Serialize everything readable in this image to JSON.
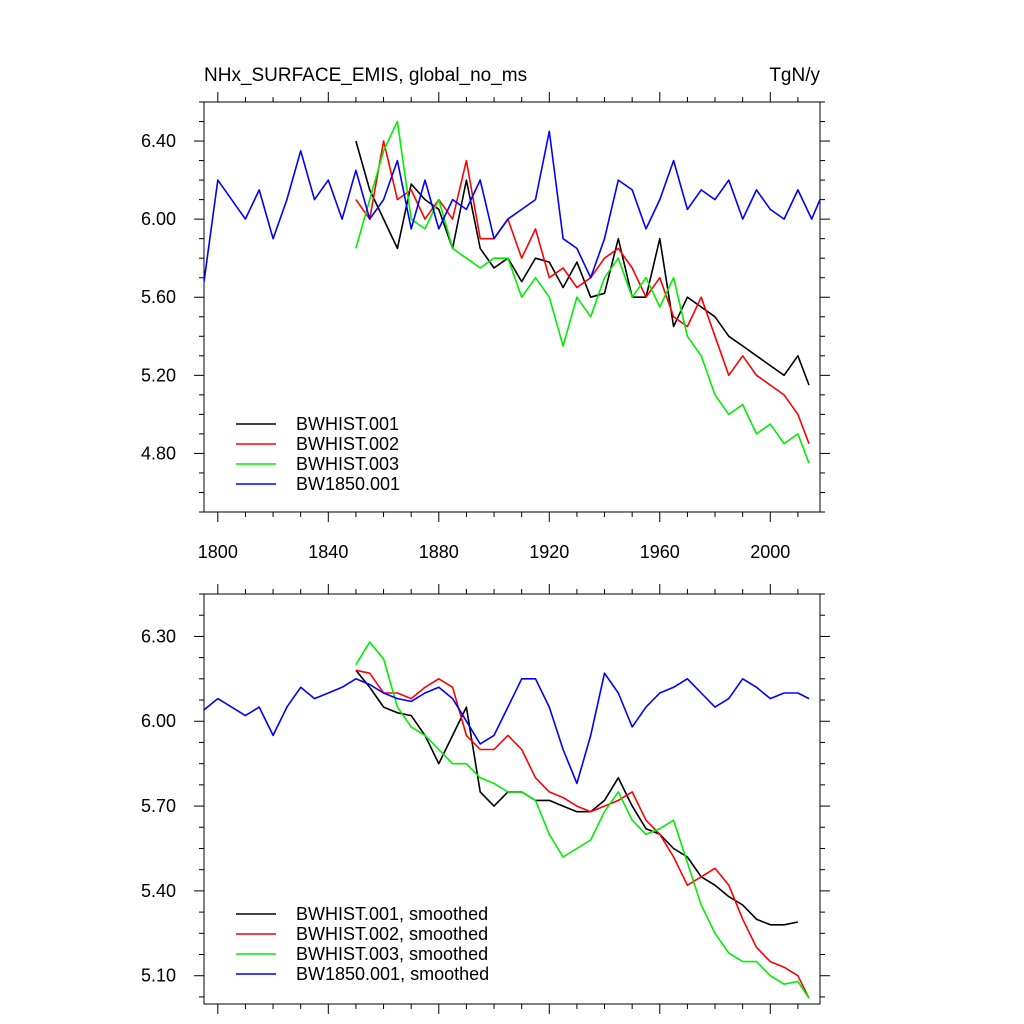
{
  "chart_data": [
    {
      "type": "line",
      "title": "NHx_SURFACE_EMIS, global_no_ms",
      "units": "TgN/y",
      "xlim": [
        1795,
        2018
      ],
      "ylim": [
        4.5,
        6.6
      ],
      "xticks": [
        1800,
        1840,
        1880,
        1920,
        1960,
        2000
      ],
      "xtick_labels": [
        "1800",
        "1840",
        "1880",
        "1920",
        "1960",
        "2000"
      ],
      "yticks": [
        4.8,
        5.2,
        5.6,
        6.0,
        6.4
      ],
      "ytick_labels": [
        "4.80",
        "5.20",
        "5.60",
        "6.00",
        "6.40"
      ],
      "legend_position": "bottom-left",
      "grid": false,
      "series": [
        {
          "name": "BWHIST.001",
          "color": "#000000",
          "x": [
            1850,
            1855,
            1860,
            1865,
            1870,
            1875,
            1880,
            1885,
            1890,
            1895,
            1900,
            1905,
            1910,
            1915,
            1920,
            1925,
            1930,
            1935,
            1940,
            1945,
            1950,
            1955,
            1960,
            1965,
            1970,
            1975,
            1980,
            1985,
            1990,
            1995,
            2000,
            2005,
            2010,
            2014
          ],
          "y": [
            6.4,
            6.15,
            6.0,
            5.85,
            6.18,
            6.1,
            6.05,
            5.85,
            6.2,
            5.85,
            5.75,
            5.8,
            5.68,
            5.8,
            5.78,
            5.65,
            5.78,
            5.6,
            5.62,
            5.9,
            5.6,
            5.6,
            5.9,
            5.45,
            5.6,
            5.55,
            5.5,
            5.4,
            5.35,
            5.3,
            5.25,
            5.2,
            5.3,
            5.15
          ]
        },
        {
          "name": "BWHIST.002",
          "color": "#ff0000",
          "x": [
            1850,
            1855,
            1860,
            1865,
            1870,
            1875,
            1880,
            1885,
            1890,
            1895,
            1900,
            1905,
            1910,
            1915,
            1920,
            1925,
            1930,
            1935,
            1940,
            1945,
            1950,
            1955,
            1960,
            1965,
            1970,
            1975,
            1980,
            1985,
            1990,
            1995,
            2000,
            2005,
            2010,
            2014
          ],
          "y": [
            6.1,
            6.0,
            6.4,
            6.1,
            6.15,
            6.0,
            6.1,
            6.0,
            6.3,
            5.9,
            5.9,
            6.0,
            5.8,
            5.95,
            5.7,
            5.75,
            5.65,
            5.7,
            5.8,
            5.85,
            5.75,
            5.6,
            5.7,
            5.5,
            5.45,
            5.6,
            5.4,
            5.2,
            5.3,
            5.2,
            5.15,
            5.1,
            5.0,
            4.85
          ]
        },
        {
          "name": "BWHIST.003",
          "color": "#00ee00",
          "x": [
            1850,
            1855,
            1860,
            1865,
            1870,
            1875,
            1880,
            1885,
            1890,
            1895,
            1900,
            1905,
            1910,
            1915,
            1920,
            1925,
            1930,
            1935,
            1940,
            1945,
            1950,
            1955,
            1960,
            1965,
            1970,
            1975,
            1980,
            1985,
            1990,
            1995,
            2000,
            2005,
            2010,
            2014
          ],
          "y": [
            5.85,
            6.1,
            6.35,
            6.5,
            6.0,
            5.95,
            6.1,
            5.85,
            5.8,
            5.75,
            5.8,
            5.8,
            5.6,
            5.7,
            5.6,
            5.35,
            5.6,
            5.5,
            5.7,
            5.8,
            5.6,
            5.7,
            5.55,
            5.7,
            5.4,
            5.3,
            5.1,
            5.0,
            5.05,
            4.9,
            4.95,
            4.85,
            4.9,
            4.75
          ]
        },
        {
          "name": "BW1850.001",
          "color": "#0000ff",
          "x": [
            1795,
            1800,
            1805,
            1810,
            1815,
            1820,
            1825,
            1830,
            1835,
            1840,
            1845,
            1850,
            1855,
            1860,
            1865,
            1870,
            1875,
            1880,
            1885,
            1890,
            1895,
            1900,
            1905,
            1910,
            1915,
            1920,
            1925,
            1930,
            1935,
            1940,
            1945,
            1950,
            1955,
            1960,
            1965,
            1970,
            1975,
            1980,
            1985,
            1990,
            1995,
            2000,
            2005,
            2010,
            2015,
            2018
          ],
          "y": [
            5.68,
            6.2,
            6.1,
            6.0,
            6.15,
            5.9,
            6.1,
            6.35,
            6.1,
            6.2,
            6.0,
            6.25,
            6.0,
            6.1,
            6.3,
            5.95,
            6.2,
            5.95,
            6.1,
            6.05,
            6.2,
            5.9,
            6.0,
            6.05,
            6.1,
            6.45,
            5.9,
            5.85,
            5.7,
            5.9,
            6.2,
            6.15,
            5.95,
            6.1,
            6.3,
            6.05,
            6.15,
            6.1,
            6.2,
            6.0,
            6.15,
            6.05,
            6.0,
            6.15,
            6.0,
            6.1
          ]
        }
      ]
    },
    {
      "type": "line",
      "xlim": [
        1795,
        2018
      ],
      "ylim": [
        5.0,
        6.45
      ],
      "xticks": [
        1800,
        1840,
        1880,
        1920,
        1960,
        2000
      ],
      "yticks": [
        5.1,
        5.4,
        5.7,
        6.0,
        6.3
      ],
      "ytick_labels": [
        "5.10",
        "5.40",
        "5.70",
        "6.00",
        "6.30"
      ],
      "legend_position": "bottom-left",
      "grid": false,
      "series": [
        {
          "name": "BWHIST.001, smoothed",
          "color": "#000000",
          "x": [
            1850,
            1855,
            1860,
            1865,
            1870,
            1875,
            1880,
            1885,
            1890,
            1895,
            1900,
            1905,
            1910,
            1915,
            1920,
            1925,
            1930,
            1935,
            1940,
            1945,
            1950,
            1955,
            1960,
            1965,
            1970,
            1975,
            1980,
            1985,
            1990,
            1995,
            2000,
            2005,
            2010
          ],
          "y": [
            6.18,
            6.12,
            6.05,
            6.03,
            6.02,
            5.95,
            5.85,
            5.95,
            6.05,
            5.75,
            5.7,
            5.75,
            5.75,
            5.72,
            5.72,
            5.7,
            5.68,
            5.68,
            5.72,
            5.8,
            5.7,
            5.62,
            5.6,
            5.55,
            5.52,
            5.45,
            5.42,
            5.38,
            5.35,
            5.3,
            5.28,
            5.28,
            5.29
          ]
        },
        {
          "name": "BWHIST.002, smoothed",
          "color": "#ff0000",
          "x": [
            1850,
            1855,
            1860,
            1865,
            1870,
            1875,
            1880,
            1885,
            1890,
            1895,
            1900,
            1905,
            1910,
            1915,
            1920,
            1925,
            1930,
            1935,
            1940,
            1945,
            1950,
            1955,
            1960,
            1965,
            1970,
            1975,
            1980,
            1985,
            1990,
            1995,
            2000,
            2005,
            2010,
            2014
          ],
          "y": [
            6.18,
            6.17,
            6.1,
            6.1,
            6.08,
            6.12,
            6.15,
            6.12,
            5.95,
            5.9,
            5.9,
            5.95,
            5.9,
            5.8,
            5.75,
            5.73,
            5.7,
            5.68,
            5.7,
            5.72,
            5.75,
            5.65,
            5.6,
            5.52,
            5.42,
            5.45,
            5.48,
            5.42,
            5.3,
            5.2,
            5.15,
            5.13,
            5.1,
            5.02
          ]
        },
        {
          "name": "BWHIST.003, smoothed",
          "color": "#00ee00",
          "x": [
            1850,
            1855,
            1860,
            1865,
            1870,
            1875,
            1880,
            1885,
            1890,
            1895,
            1900,
            1905,
            1910,
            1915,
            1920,
            1925,
            1930,
            1935,
            1940,
            1945,
            1950,
            1955,
            1960,
            1965,
            1970,
            1975,
            1980,
            1985,
            1990,
            1995,
            2000,
            2005,
            2010,
            2014
          ],
          "y": [
            6.2,
            6.28,
            6.22,
            6.05,
            5.98,
            5.95,
            5.9,
            5.85,
            5.85,
            5.8,
            5.78,
            5.75,
            5.75,
            5.72,
            5.6,
            5.52,
            5.55,
            5.58,
            5.68,
            5.75,
            5.65,
            5.6,
            5.62,
            5.65,
            5.5,
            5.35,
            5.25,
            5.18,
            5.15,
            5.15,
            5.1,
            5.07,
            5.08,
            5.02
          ]
        },
        {
          "name": "BW1850.001, smoothed",
          "color": "#0000ff",
          "x": [
            1795,
            1800,
            1805,
            1810,
            1815,
            1820,
            1825,
            1830,
            1835,
            1840,
            1845,
            1850,
            1855,
            1860,
            1865,
            1870,
            1875,
            1880,
            1885,
            1890,
            1895,
            1900,
            1905,
            1910,
            1915,
            1920,
            1925,
            1930,
            1935,
            1940,
            1945,
            1950,
            1955,
            1960,
            1965,
            1970,
            1975,
            1980,
            1985,
            1990,
            1995,
            2000,
            2005,
            2010,
            2014
          ],
          "y": [
            6.04,
            6.08,
            6.05,
            6.02,
            6.05,
            5.95,
            6.05,
            6.12,
            6.08,
            6.1,
            6.12,
            6.15,
            6.13,
            6.1,
            6.08,
            6.07,
            6.1,
            6.12,
            6.08,
            6.0,
            5.92,
            5.95,
            6.05,
            6.15,
            6.15,
            6.05,
            5.9,
            5.78,
            5.95,
            6.17,
            6.1,
            5.98,
            6.05,
            6.1,
            6.12,
            6.15,
            6.1,
            6.05,
            6.08,
            6.15,
            6.12,
            6.08,
            6.1,
            6.1,
            6.08
          ]
        }
      ]
    }
  ]
}
